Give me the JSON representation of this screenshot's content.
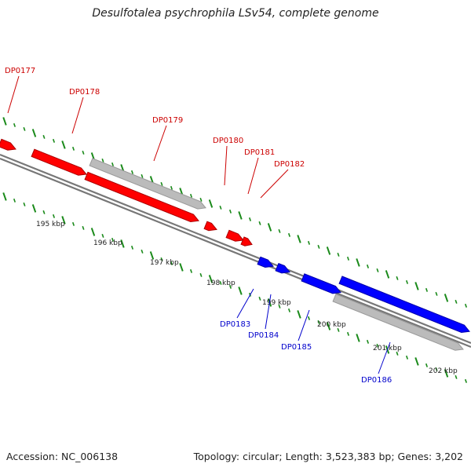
{
  "title": "Desulfotalea psychrophila LSv54, complete genome",
  "footer": {
    "accession": "Accession: NC_006138",
    "summary": "Topology: circular; Length: 3,523,383 bp; Genes: 3,202"
  },
  "colors": {
    "forward_gene": "#ff0000",
    "reverse_gene": "#0000ff",
    "pseudo_gene": "#bbbbbb",
    "axis": "#777777",
    "tick": "#1a8a1a",
    "forward_label": "#cc0000",
    "reverse_label": "#0000cc"
  },
  "scale": {
    "unit": "kbp",
    "labels": [
      "195 kbp",
      "196 kbp",
      "197 kbp",
      "198 kbp",
      "199 kbp",
      "200 kbp",
      "201 kbp",
      "202 kbp"
    ]
  },
  "genes_forward": [
    "DP0177",
    "DP0178",
    "DP0179",
    "DP0180",
    "DP0181",
    "DP0182"
  ],
  "genes_reverse": [
    "DP0183",
    "DP0184",
    "DP0185",
    "DP0186"
  ]
}
